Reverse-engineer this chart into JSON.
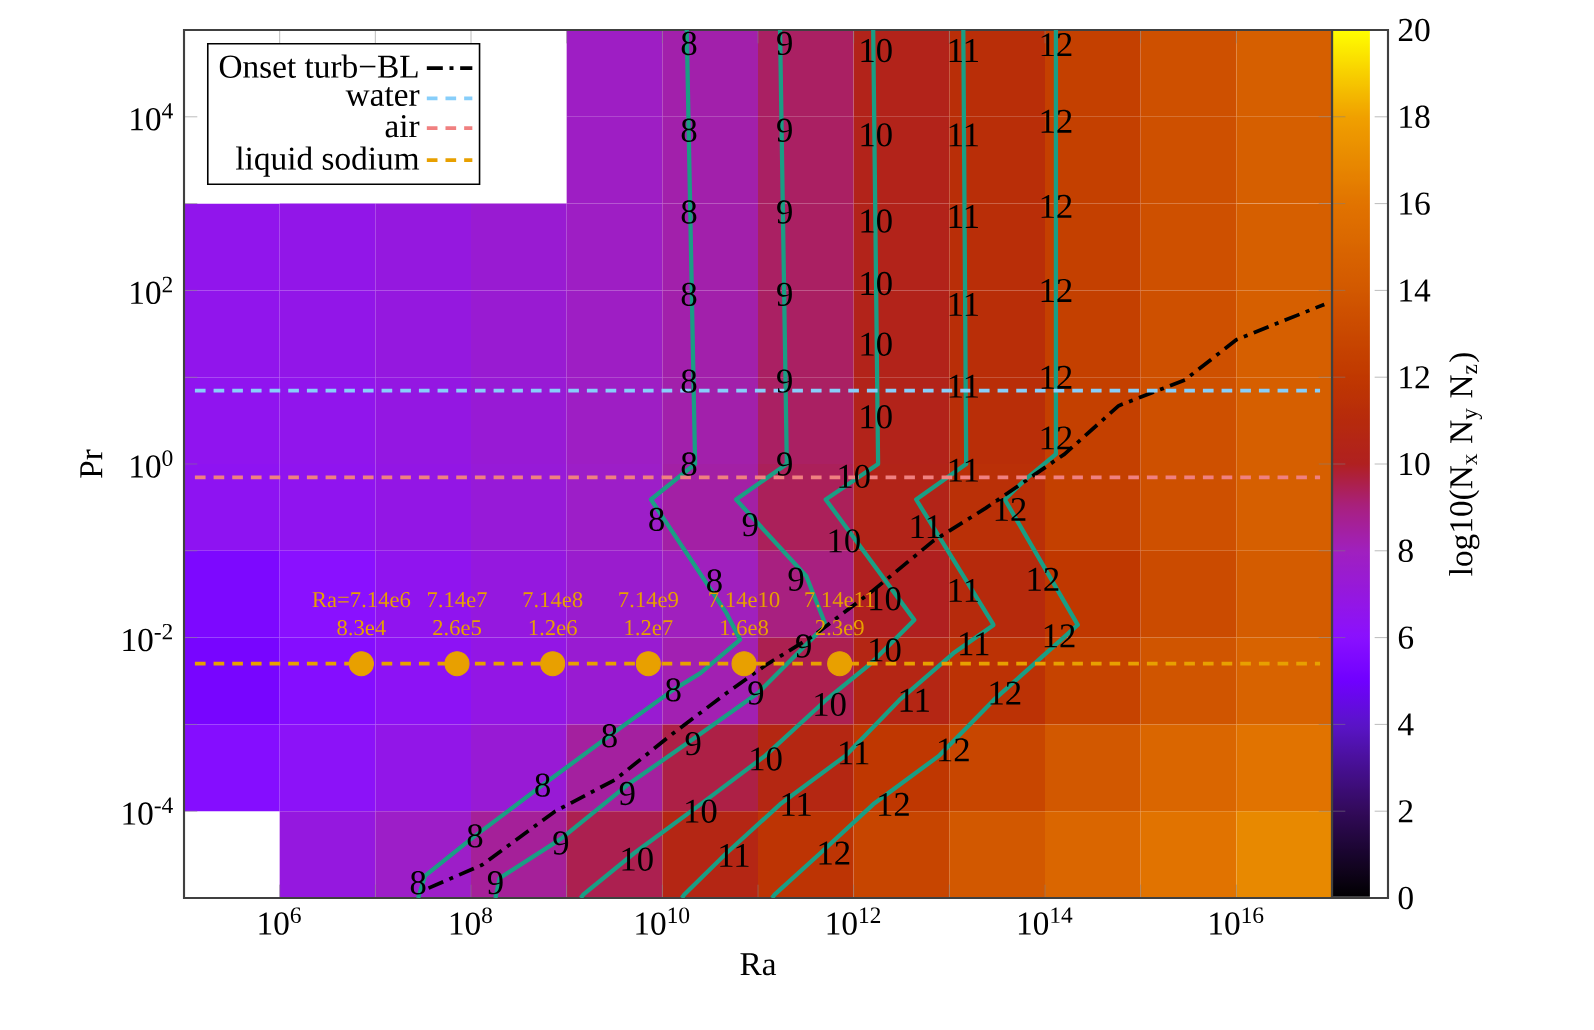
{
  "chart_data": [
    {
      "type": "heatmap",
      "clabel": "log10(N$_{x}$ N$_{y}$ N$_{z}$)",
      "clim": [
        0,
        20
      ],
      "cticks": [
        0,
        2,
        4,
        6,
        8,
        10,
        12,
        14,
        16,
        18,
        20
      ],
      "categories": [
        null,
        null,
        null,
        null,
        null,
        null,
        null,
        null,
        null,
        null,
        null,
        null
      ],
      "y_categories": [
        null,
        null,
        null,
        null,
        null,
        null,
        null,
        null,
        null,
        null
      ],
      "cells": [
        [
          null,
          null,
          null,
          null,
          7.8,
          8.3,
          9.3,
          10.3,
          11.3,
          12.5,
          13.5,
          14.5
        ],
        [
          null,
          null,
          null,
          null,
          7.8,
          8.3,
          9.3,
          10.3,
          11.3,
          12.5,
          13.5,
          14.5
        ],
        [
          6.6,
          6.7,
          7.0,
          7.4,
          7.8,
          8.3,
          9.3,
          10.3,
          11.3,
          12.5,
          13.5,
          14.5
        ],
        [
          6.6,
          6.7,
          7.0,
          7.4,
          7.8,
          8.3,
          9.3,
          10.3,
          11.3,
          12.5,
          13.5,
          14.5
        ],
        [
          6.5,
          6.6,
          6.9,
          7.3,
          7.8,
          8.3,
          9.3,
          10.3,
          11.3,
          12.5,
          13.5,
          14.5
        ],
        [
          6.4,
          6.5,
          6.8,
          7.2,
          7.7,
          8.4,
          9.4,
          10.4,
          11.4,
          12.5,
          13.5,
          14.5
        ],
        [
          5.5,
          6.0,
          6.5,
          7.0,
          7.5,
          8.0,
          9.0,
          10.0,
          11.0,
          12.0,
          13.2,
          14.3
        ],
        [
          5.3,
          5.8,
          6.3,
          6.8,
          7.4,
          8.2,
          9.5,
          10.6,
          11.6,
          12.7,
          13.8,
          14.8
        ],
        [
          5.8,
          6.2,
          6.7,
          7.3,
          8.5,
          9.6,
          10.7,
          11.9,
          12.9,
          14.0,
          15.0,
          16.0
        ],
        [
          null,
          7.0,
          7.7,
          8.6,
          9.5,
          10.6,
          11.7,
          12.8,
          14.0,
          15.0,
          16.0,
          17.0
        ]
      ]
    },
    {
      "type": "line",
      "xlabel": "Ra",
      "ylabel": "Pr",
      "log": "xy",
      "legend": "top left",
      "xlim": [
        100000.0,
        1e+17
      ],
      "ylim": [
        1e-05,
        100000.0
      ],
      "xticks": [
        {
          "value": 100000.0,
          "label": null
        },
        {
          "value": 1000000.0,
          "label": "10$^{6}$"
        },
        {
          "value": 10000000.0,
          "label": null
        },
        {
          "value": 100000000.0,
          "label": "10$^{8}$"
        },
        {
          "value": 1000000000.0,
          "label": null
        },
        {
          "value": 10000000000.0,
          "label": "10$^{10}$"
        },
        {
          "value": 100000000000.0,
          "label": null
        },
        {
          "value": 1000000000000.0,
          "label": "10$^{12}$"
        },
        {
          "value": 10000000000000.0,
          "label": null
        },
        {
          "value": 100000000000000.0,
          "label": "10$^{14}$"
        },
        {
          "value": 1000000000000000.0,
          "label": null
        },
        {
          "value": 1e+16,
          "label": "10$^{16}$"
        },
        {
          "value": 1e+17,
          "label": null
        }
      ],
      "yticks": [
        {
          "value": 1e-05,
          "label": null
        },
        {
          "value": 0.0001,
          "label": "10$^{-4}$"
        },
        {
          "value": 0.001,
          "label": null
        },
        {
          "value": 0.01,
          "label": "10$^{-2}$"
        },
        {
          "value": 0.1,
          "label": null
        },
        {
          "value": 1,
          "label": "10$^{0}$"
        },
        {
          "value": 10,
          "label": null
        },
        {
          "value": 100,
          "label": "10$^{2}$"
        },
        {
          "value": 1000,
          "label": null
        },
        {
          "value": 10000.0,
          "label": "10$^{4}$"
        },
        {
          "value": 100000.0,
          "label": null
        }
      ],
      "series": [
        {
          "type": "line",
          "color": "#1a9e84",
          "x": [
            18000000000.0,
            22000000000.0,
            7600000000.0,
            47000000000.0,
            65000000000.0,
            25000000000.0,
            13000000000.0,
            2800000000.0,
            560000000.0,
            110000000.0,
            33000000.0,
            28000000.0
          ],
          "values": [
            100000.0,
            1,
            0.39,
            0.019,
            0.0095,
            0.0039,
            0.0025,
            0.00074,
            0.0002,
            5.2e-05,
            1.8e-05,
            1e-05
          ]
        },
        {
          "type": "line",
          "color": "#1a9e84",
          "x": [
            170000000000.0,
            200000000000.0,
            59000000000.0,
            320000000000.0,
            510000000000.0,
            100000000000.0,
            21000000000.0,
            4300000000.0,
            870000000.0,
            200000000.0,
            180000000.0
          ],
          "values": [
            100000.0,
            1,
            0.39,
            0.051,
            0.014,
            0.0023,
            0.00068,
            0.0002,
            4.8e-05,
            1.7e-05,
            1e-05
          ]
        },
        {
          "type": "line",
          "color": "#1a9e84",
          "x": [
            1600000000000.0,
            1800000000000.0,
            510000000000.0,
            4300000000000.0,
            1500000000000.0,
            510000000000.0,
            120000000000.0,
            25000000000.0,
            5100000000.0,
            1500000000.0,
            1400000000.0
          ],
          "values": [
            100000.0,
            1,
            0.39,
            0.016,
            0.005,
            0.0019,
            0.00044,
            0.00012,
            3.3e-05,
            1.1e-05,
            1e-05
          ]
        },
        {
          "type": "line",
          "color": "#1a9e84",
          "x": [
            14000000000000.0,
            15000000000000.0,
            4500000000000.0,
            29000000000000.0,
            11000000000000.0,
            3000000000000.0,
            830000000000.0,
            170000000000.0,
            47000000000.0,
            17000000000.0,
            16000000000.0
          ],
          "values": [
            100000.0,
            1,
            0.39,
            0.014,
            0.0066,
            0.0019,
            0.00044,
            0.00012,
            3.3e-05,
            1.1e-05,
            1e-05
          ]
        },
        {
          "type": "line",
          "color": "#1a9e84",
          "x": [
            130000000000000.0,
            130000000000000.0,
            62000000000000.0,
            38000000000000.0,
            220000000000000.0,
            87000000000000.0,
            29000000000000.0,
            7900000000000.0,
            1600000000000.0,
            450000000000.0,
            150000000000.0,
            140000000000.0
          ],
          "values": [
            100000.0,
            1.3,
            0.66,
            0.39,
            0.014,
            0.0056,
            0.0019,
            0.00044,
            0.00012,
            3.3e-05,
            1.1e-05,
            1e-05
          ]
        },
        {
          "type": "line",
          "name": "Onset turb−BL",
          "color": "#000000",
          "line_style": "dashdot",
          "x": [
            36000000.0,
            130000000.0,
            760000000.0,
            3200000000.0,
            13000000000.0,
            47000000000.0,
            120000000000.0,
            380000000000.0,
            1600000000000.0,
            6800000000000.0,
            24000000000000.0,
            160000000000000.0,
            590000000000000.0,
            2900000000000000.0,
            1e+16,
            8.3e+16
          ],
          "values": [
            1.3e-05,
            2.4e-05,
            0.0001,
            0.00023,
            0.00079,
            0.0023,
            0.0048,
            0.0105,
            0.035,
            0.13,
            0.31,
            1.3,
            4.7,
            9.3,
            27,
            69
          ]
        },
        {
          "type": "line",
          "name": "water",
          "color": "#87cefa",
          "line_style": "dashed",
          "x": [
            130000.0,
            7.5e+16
          ],
          "values": [
            7,
            7
          ]
        },
        {
          "type": "line",
          "name": "air",
          "color": "#f08080",
          "line_style": "dashed",
          "x": [
            130000.0,
            7.5e+16
          ],
          "values": [
            0.7,
            0.7
          ]
        },
        {
          "type": "line",
          "name": "liquid sodium",
          "color": "#e8a000",
          "line_style": "dashed",
          "x": [
            130000.0,
            7.5e+16
          ],
          "values": [
            0.005,
            0.005
          ]
        },
        {
          "type": "scatter",
          "color": "#e8a000",
          "marker": "circle",
          "x": [
            7140000.0,
            71400000.0,
            714000000.0,
            7140000000.0,
            71400000000.0,
            714000000000.0
          ],
          "values": [
            0.005,
            0.005,
            0.005,
            0.005,
            0.005,
            0.005
          ]
        }
      ],
      "annotations": [
        {
          "text": "Ra=7.14e6",
          "x": 7140000.0,
          "y": 0.005
        },
        {
          "text": "7.14e7",
          "x": 71400000.0,
          "y": 0.005
        },
        {
          "text": "7.14e8",
          "x": 714000000.0,
          "y": 0.005
        },
        {
          "text": "7.14e9",
          "x": 7140000000.0,
          "y": 0.005
        },
        {
          "text": "7.14e10",
          "x": 71400000000.0,
          "y": 0.005
        },
        {
          "text": "7.14e11",
          "x": 714000000000.0,
          "y": 0.005
        },
        {
          "text": "8.3e4",
          "x": 7140000.0,
          "y": 0.005
        },
        {
          "text": "2.6e5",
          "x": 71400000.0,
          "y": 0.005
        },
        {
          "text": "1.2e6",
          "x": 714000000.0,
          "y": 0.005
        },
        {
          "text": "1.2e7",
          "x": 7140000000.0,
          "y": 0.005
        },
        {
          "text": "1.6e8",
          "x": 71400000000.0,
          "y": 0.005
        },
        {
          "text": "2.3e9",
          "x": 714000000000.0,
          "y": 0.005
        },
        {
          "text": "8",
          "x": 19000000000.0,
          "y": 70000.0
        },
        {
          "text": "8",
          "x": 19000000000.0,
          "y": 7000.0
        },
        {
          "text": "8",
          "x": 19000000000.0,
          "y": 800
        },
        {
          "text": "8",
          "x": 19000000000.0,
          "y": 90
        },
        {
          "text": "8",
          "x": 19000000000.0,
          "y": 9
        },
        {
          "text": "8",
          "x": 19000000000.0,
          "y": 1
        },
        {
          "text": "8",
          "x": 8700000000.0,
          "y": 0.23
        },
        {
          "text": "8",
          "x": 35000000000.0,
          "y": 0.045
        },
        {
          "text": "8",
          "x": 13000000000.0,
          "y": 0.0025
        },
        {
          "text": "8",
          "x": 2800000000.0,
          "y": 0.00074
        },
        {
          "text": "8",
          "x": 560000000.0,
          "y": 0.0002
        },
        {
          "text": "8",
          "x": 110000000.0,
          "y": 5.2e-05
        },
        {
          "text": "8",
          "x": 28000000.0,
          "y": 1.5e-05
        },
        {
          "text": "9",
          "x": 190000000000.0,
          "y": 70000.0
        },
        {
          "text": "9",
          "x": 190000000000.0,
          "y": 7000.0
        },
        {
          "text": "9",
          "x": 190000000000.0,
          "y": 800
        },
        {
          "text": "9",
          "x": 190000000000.0,
          "y": 90
        },
        {
          "text": "9",
          "x": 190000000000.0,
          "y": 9
        },
        {
          "text": "9",
          "x": 190000000000.0,
          "y": 1
        },
        {
          "text": "9",
          "x": 83000000000.0,
          "y": 0.2
        },
        {
          "text": "9",
          "x": 250000000000.0,
          "y": 0.047
        },
        {
          "text": "9",
          "x": 300000000000.0,
          "y": 0.008
        },
        {
          "text": "9",
          "x": 95000000000.0,
          "y": 0.0023
        },
        {
          "text": "9",
          "x": 21000000000.0,
          "y": 0.0006
        },
        {
          "text": "9",
          "x": 4300000000.0,
          "y": 0.00016
        },
        {
          "text": "9",
          "x": 870000000.0,
          "y": 4.3e-05
        },
        {
          "text": "9",
          "x": 180000000.0,
          "y": 1.5e-05
        },
        {
          "text": "10",
          "x": 1700000000000.0,
          "y": 58000.0
        },
        {
          "text": "10",
          "x": 1700000000000.0,
          "y": 6200.0
        },
        {
          "text": "10",
          "x": 1700000000000.0,
          "y": 630
        },
        {
          "text": "10",
          "x": 1700000000000.0,
          "y": 120
        },
        {
          "text": "10",
          "x": 1700000000000.0,
          "y": 24
        },
        {
          "text": "10",
          "x": 1700000000000.0,
          "y": 3.5
        },
        {
          "text": "10",
          "x": 1000000000000.0,
          "y": 0.72
        },
        {
          "text": "10",
          "x": 790000000000.0,
          "y": 0.13
        },
        {
          "text": "10",
          "x": 2100000000000.0,
          "y": 0.028
        },
        {
          "text": "10",
          "x": 2100000000000.0,
          "y": 0.0072
        },
        {
          "text": "10",
          "x": 560000000000.0,
          "y": 0.0017
        },
        {
          "text": "10",
          "x": 120000000000.0,
          "y": 0.0004
        },
        {
          "text": "10",
          "x": 25000000000.0,
          "y": 0.0001
        },
        {
          "text": "10",
          "x": 5400000000.0,
          "y": 2.8e-05
        },
        {
          "text": "11",
          "x": 14000000000000.0,
          "y": 58000.0
        },
        {
          "text": "11",
          "x": 14000000000000.0,
          "y": 6200.0
        },
        {
          "text": "11",
          "x": 14000000000000.0,
          "y": 710
        },
        {
          "text": "11",
          "x": 14000000000000.0,
          "y": 69
        },
        {
          "text": "11",
          "x": 14000000000000.0,
          "y": 7.9
        },
        {
          "text": "11",
          "x": 14000000000000.0,
          "y": 0.85
        },
        {
          "text": "11",
          "x": 5600000000000.0,
          "y": 0.19
        },
        {
          "text": "11",
          "x": 14000000000000.0,
          "y": 0.035
        },
        {
          "text": "11",
          "x": 18000000000000.0,
          "y": 0.0085
        },
        {
          "text": "11",
          "x": 4300000000000.0,
          "y": 0.0019
        },
        {
          "text": "11",
          "x": 1000000000000.0,
          "y": 0.00047
        },
        {
          "text": "11",
          "x": 250000000000.0,
          "y": 0.00012
        },
        {
          "text": "11",
          "x": 56000000000.0,
          "y": 3.1e-05
        },
        {
          "text": "12",
          "x": 130000000000000.0,
          "y": 68000.0
        },
        {
          "text": "12",
          "x": 130000000000000.0,
          "y": 8900.0
        },
        {
          "text": "12",
          "x": 130000000000000.0,
          "y": 930
        },
        {
          "text": "12",
          "x": 130000000000000.0,
          "y": 100
        },
        {
          "text": "12",
          "x": 130000000000000.0,
          "y": 10
        },
        {
          "text": "12",
          "x": 130000000000000.0,
          "y": 2
        },
        {
          "text": "12",
          "x": 43000000000000.0,
          "y": 0.3
        },
        {
          "text": "12",
          "x": 95000000000000.0,
          "y": 0.047
        },
        {
          "text": "12",
          "x": 140000000000000.0,
          "y": 0.0105
        },
        {
          "text": "12",
          "x": 38000000000000.0,
          "y": 0.0023
        },
        {
          "text": "12",
          "x": 11000000000000.0,
          "y": 0.00051
        },
        {
          "text": "12",
          "x": 2600000000000.0,
          "y": 0.00012
        },
        {
          "text": "12",
          "x": 620000000000.0,
          "y": 3.3e-05
        }
      ]
    }
  ]
}
